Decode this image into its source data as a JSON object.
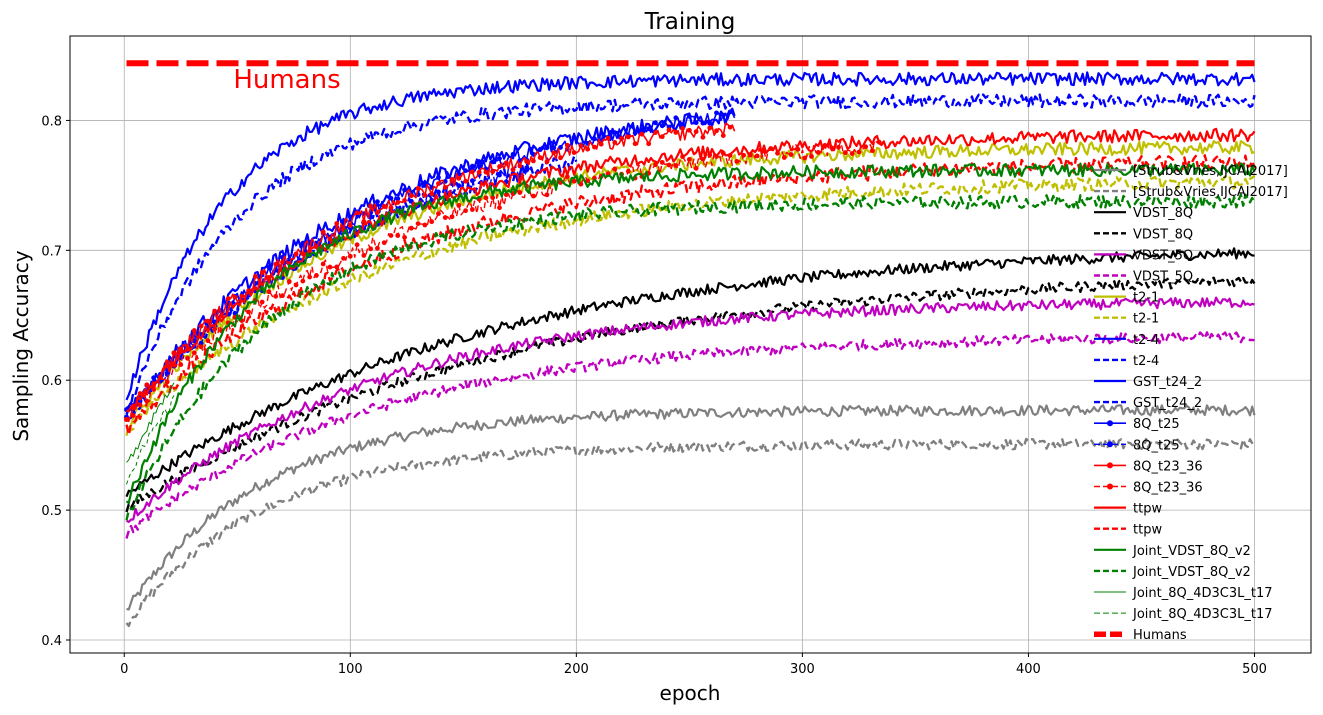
{
  "chart_data": {
    "type": "line",
    "title": "Training",
    "xlabel": "epoch",
    "ylabel": "Sampling Accuracy",
    "xlim": [
      -24,
      525
    ],
    "ylim": [
      0.39,
      0.865
    ],
    "grid": true,
    "legend_position": "right",
    "xticks": [
      0,
      100,
      200,
      300,
      400,
      500
    ],
    "yticks": [
      0.4,
      0.5,
      0.6,
      0.7,
      0.8
    ],
    "xtick_labels": [
      "0",
      "100",
      "200",
      "300",
      "400",
      "500"
    ],
    "ytick_labels": [
      "0.4",
      "0.5",
      "0.6",
      "0.7",
      "0.8"
    ],
    "annotations": [
      {
        "text": "Humans",
        "x": 72,
        "y": 0.825,
        "color": "#ff0000"
      }
    ],
    "series": [
      {
        "name": "[Strub&Vries,IJCAI2017]",
        "color": "#808080",
        "style": "solid",
        "epochs": 500,
        "start": 0.42,
        "plateau": 0.577,
        "rate": 60,
        "noise": 0.004
      },
      {
        "name": "[Strub&Vries,IJCAI2017]",
        "color": "#808080",
        "style": "dashed",
        "epochs": 500,
        "start": 0.41,
        "plateau": 0.551,
        "rate": 60,
        "noise": 0.004
      },
      {
        "name": "VDST_8Q",
        "color": "#000000",
        "style": "solid",
        "epochs": 500,
        "start": 0.51,
        "plateau": 0.705,
        "rate": 150,
        "noise": 0.004
      },
      {
        "name": "VDST_8Q",
        "color": "#000000",
        "style": "dashed",
        "epochs": 500,
        "start": 0.5,
        "plateau": 0.685,
        "rate": 160,
        "noise": 0.004
      },
      {
        "name": "VDST_5Q",
        "color": "#bf00bf",
        "style": "solid",
        "epochs": 500,
        "start": 0.49,
        "plateau": 0.662,
        "rate": 110,
        "noise": 0.004
      },
      {
        "name": "VDST_5Q",
        "color": "#bf00bf",
        "style": "dashed",
        "epochs": 500,
        "start": 0.48,
        "plateau": 0.635,
        "rate": 110,
        "noise": 0.004
      },
      {
        "name": "t2-1",
        "color": "#bfbf00",
        "style": "solid",
        "epochs": 500,
        "start": 0.56,
        "plateau": 0.78,
        "rate": 90,
        "noise": 0.005
      },
      {
        "name": "t2-1",
        "color": "#bfbf00",
        "style": "dashed",
        "epochs": 500,
        "start": 0.56,
        "plateau": 0.755,
        "rate": 110,
        "noise": 0.005
      },
      {
        "name": "t2-4",
        "color": "#0000ff",
        "style": "solid",
        "epochs": 270,
        "start": 0.57,
        "plateau": 0.82,
        "rate": 100,
        "noise": 0.006
      },
      {
        "name": "t2-4",
        "color": "#0000ff",
        "style": "dashed",
        "epochs": 200,
        "start": 0.57,
        "plateau": 0.8,
        "rate": 100,
        "noise": 0.007
      },
      {
        "name": "GST_t24_2",
        "color": "#0000ff",
        "style": "solid",
        "epochs": 500,
        "start": 0.58,
        "plateau": 0.832,
        "rate": 45,
        "noise": 0.005
      },
      {
        "name": "GST_t24_2",
        "color": "#0000ff",
        "style": "dashed",
        "epochs": 500,
        "start": 0.57,
        "plateau": 0.815,
        "rate": 50,
        "noise": 0.005
      },
      {
        "name": "8Q_t25",
        "color": "#0000ff",
        "style": "solid-marker",
        "epochs": 270,
        "start": 0.57,
        "plateau": 0.825,
        "rate": 110,
        "noise": 0.005
      },
      {
        "name": "8Q_t25",
        "color": "#0000ff",
        "style": "dashed-marker",
        "epochs": 180,
        "start": 0.57,
        "plateau": 0.81,
        "rate": 110,
        "noise": 0.006
      },
      {
        "name": "8Q_t23_36",
        "color": "#ff0000",
        "style": "solid-marker",
        "epochs": 270,
        "start": 0.57,
        "plateau": 0.81,
        "rate": 100,
        "noise": 0.005
      },
      {
        "name": "8Q_t23_36",
        "color": "#ff0000",
        "style": "dashed-marker",
        "epochs": 335,
        "start": 0.57,
        "plateau": 0.795,
        "rate": 120,
        "noise": 0.006
      },
      {
        "name": "ttpw",
        "color": "#ff0000",
        "style": "solid",
        "epochs": 500,
        "start": 0.57,
        "plateau": 0.79,
        "rate": 95,
        "noise": 0.005
      },
      {
        "name": "ttpw",
        "color": "#ff0000",
        "style": "dashed",
        "epochs": 500,
        "start": 0.56,
        "plateau": 0.77,
        "rate": 110,
        "noise": 0.006
      },
      {
        "name": "Joint_VDST_8Q_v2",
        "color": "#008000",
        "style": "solid",
        "epochs": 500,
        "start": 0.5,
        "plateau": 0.762,
        "rate": 60,
        "noise": 0.005
      },
      {
        "name": "Joint_VDST_8Q_v2",
        "color": "#008000",
        "style": "dashed",
        "epochs": 500,
        "start": 0.49,
        "plateau": 0.738,
        "rate": 65,
        "noise": 0.005
      },
      {
        "name": "Joint_8Q_4D3C3L_t17",
        "color": "#008000",
        "style": "thin",
        "epochs": 22,
        "start": 0.53,
        "plateau": 0.75,
        "rate": 60,
        "noise": 0.004
      },
      {
        "name": "Joint_8Q_4D3C3L_t17",
        "color": "#008000",
        "style": "thin-dashed",
        "epochs": 22,
        "start": 0.52,
        "plateau": 0.73,
        "rate": 60,
        "noise": 0.004
      },
      {
        "name": "Humans",
        "color": "#ff0000",
        "style": "thick-dashed",
        "epochs": 500,
        "start": 0.844,
        "plateau": 0.844,
        "rate": 1,
        "noise": 0
      }
    ]
  }
}
